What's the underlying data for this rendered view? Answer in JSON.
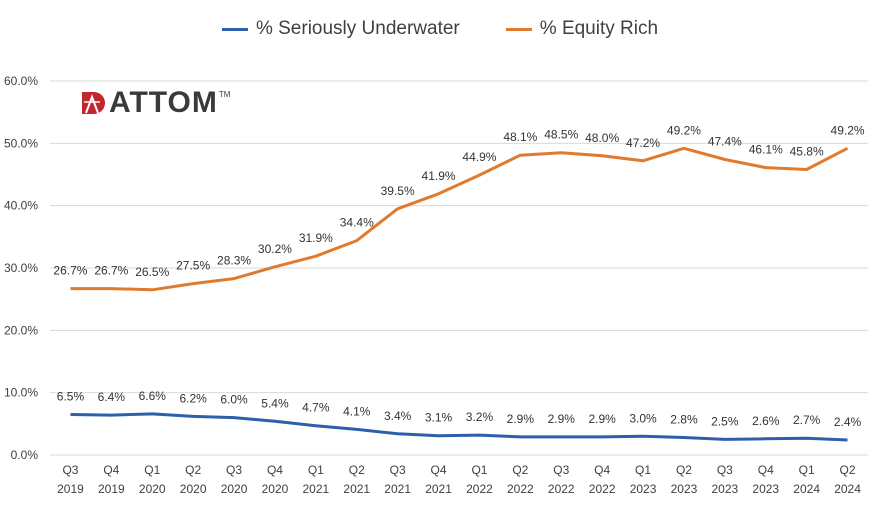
{
  "chart_data": {
    "type": "line",
    "title": "",
    "xlabel": "",
    "ylabel": "",
    "ylim": [
      0,
      60
    ],
    "yticks": [
      "0.0%",
      "10.0%",
      "20.0%",
      "30.0%",
      "40.0%",
      "50.0%",
      "60.0%"
    ],
    "ytick_values": [
      0,
      10,
      20,
      30,
      40,
      50,
      60
    ],
    "grid": true,
    "legend_position": "top-center",
    "categories": [
      [
        "Q3",
        "2019"
      ],
      [
        "Q4",
        "2019"
      ],
      [
        "Q1",
        "2020"
      ],
      [
        "Q2",
        "2020"
      ],
      [
        "Q3",
        "2020"
      ],
      [
        "Q4",
        "2020"
      ],
      [
        "Q1",
        "2021"
      ],
      [
        "Q2",
        "2021"
      ],
      [
        "Q3",
        "2021"
      ],
      [
        "Q4",
        "2021"
      ],
      [
        "Q1",
        "2022"
      ],
      [
        "Q2",
        "2022"
      ],
      [
        "Q3",
        "2022"
      ],
      [
        "Q4",
        "2022"
      ],
      [
        "Q1",
        "2023"
      ],
      [
        "Q2",
        "2023"
      ],
      [
        "Q3",
        "2023"
      ],
      [
        "Q4",
        "2023"
      ],
      [
        "Q1",
        "2024"
      ],
      [
        "Q2",
        "2024"
      ]
    ],
    "series": [
      {
        "name": "% Seriously Underwater",
        "color": "#2e5faa",
        "values": [
          6.5,
          6.4,
          6.6,
          6.2,
          6.0,
          5.4,
          4.7,
          4.1,
          3.4,
          3.1,
          3.2,
          2.9,
          2.9,
          2.9,
          3.0,
          2.8,
          2.5,
          2.6,
          2.7,
          2.4
        ],
        "labels": [
          "6.5%",
          "6.4%",
          "6.6%",
          "6.2%",
          "6.0%",
          "5.4%",
          "4.7%",
          "4.1%",
          "3.4%",
          "3.1%",
          "3.2%",
          "2.9%",
          "2.9%",
          "2.9%",
          "3.0%",
          "2.8%",
          "2.5%",
          "2.6%",
          "2.7%",
          "2.4%"
        ]
      },
      {
        "name": "% Equity Rich",
        "color": "#e07b2e",
        "values": [
          26.7,
          26.7,
          26.5,
          27.5,
          28.3,
          30.2,
          31.9,
          34.4,
          39.5,
          41.9,
          44.9,
          48.1,
          48.5,
          48.0,
          47.2,
          49.2,
          47.4,
          46.1,
          45.8,
          49.2
        ],
        "labels": [
          "26.7%",
          "26.7%",
          "26.5%",
          "27.5%",
          "28.3%",
          "30.2%",
          "31.9%",
          "34.4%",
          "39.5%",
          "41.9%",
          "44.9%",
          "48.1%",
          "48.5%",
          "48.0%",
          "47.2%",
          "49.2%",
          "47.4%",
          "46.1%",
          "45.8%",
          "49.2%"
        ]
      }
    ]
  },
  "logo": {
    "text": "ATTOM",
    "tm": "TM",
    "icon": "attom-logo-icon",
    "colors": {
      "mark": "#c0282e",
      "text": "#3a3a3a"
    }
  },
  "colors": {
    "grid": "#d9d9d9",
    "axis_text": "#404040"
  }
}
